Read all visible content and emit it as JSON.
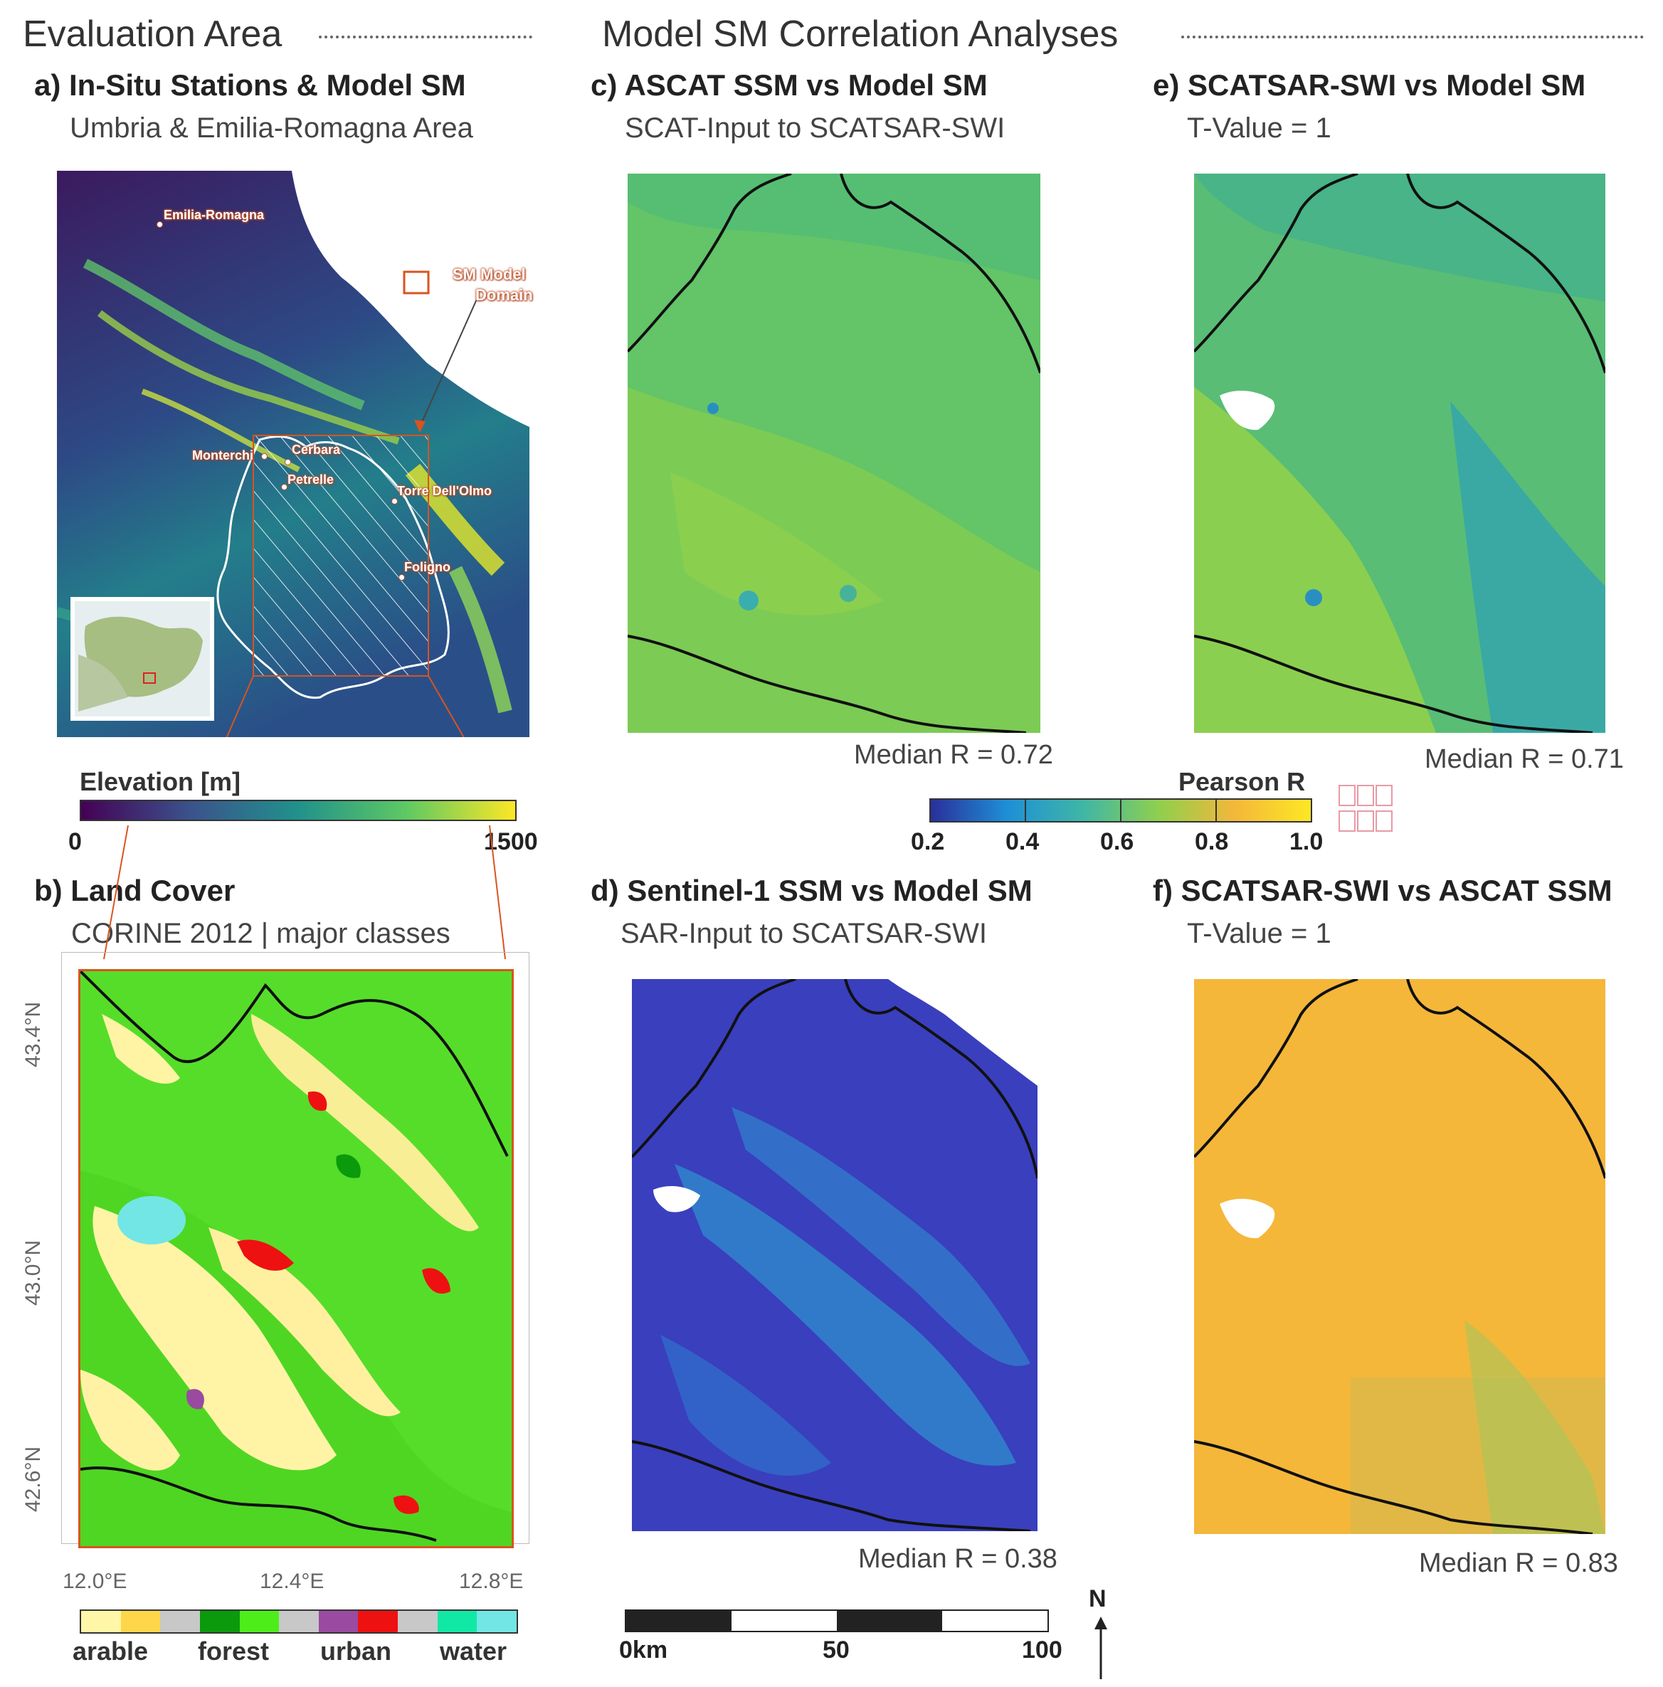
{
  "header": {
    "left_section": "Evaluation Area",
    "right_section": "Model SM Correlation Analyses"
  },
  "panel_a": {
    "title": "a) In-Situ Stations & Model SM",
    "subtitle": "Umbria & Emilia-Romagna Area",
    "stations": [
      "Emilia-Romagna",
      "Monterchi",
      "Cerbara",
      "Petrelle",
      "Torre Dell'Olmo",
      "Foligno"
    ],
    "domain_label_1": "SM Model",
    "domain_label_2": "Domain",
    "elevation_title": "Elevation [m]",
    "elevation_min": "0",
    "elevation_max": "1500"
  },
  "panel_b": {
    "title": "b) Land Cover",
    "subtitle": "CORINE 2012 | major classes",
    "lat_ticks": [
      "43.4°N",
      "43.0°N",
      "42.6°N"
    ],
    "lon_ticks": [
      "12.0°E",
      "12.4°E",
      "12.8°E"
    ],
    "classes": [
      {
        "label": "arable",
        "colors": [
          "#fff6a8",
          "#ffd64a"
        ]
      },
      {
        "label": "forest",
        "colors": [
          "#0b9a0b",
          "#4ded1a"
        ]
      },
      {
        "label": "urban",
        "colors": [
          "#9a4aa0",
          "#ee1111"
        ]
      },
      {
        "label": "water",
        "colors": [
          "#12e8a6",
          "#72e6e4"
        ]
      }
    ]
  },
  "panel_c": {
    "title": "c) ASCAT SSM vs Model SM",
    "subtitle": "SCAT-Input to SCATSAR-SWI",
    "median": "Median R = 0.72"
  },
  "panel_d": {
    "title": "d) Sentinel-1 SSM vs Model SM",
    "subtitle": "SAR-Input to SCATSAR-SWI",
    "median": "Median R = 0.38"
  },
  "panel_e": {
    "title": "e) SCATSAR-SWI vs Model SM",
    "subtitle": "T-Value = 1",
    "median": "Median R = 0.71"
  },
  "panel_f": {
    "title": "f) SCATSAR-SWI vs ASCAT SSM",
    "subtitle": "T-Value = 1",
    "median": "Median R = 0.83"
  },
  "pearson_colorbar": {
    "title": "Pearson R",
    "ticks": [
      "0.2",
      "0.4",
      "0.6",
      "0.8",
      "1.0"
    ],
    "values": [
      0.2,
      0.4,
      0.6,
      0.8,
      1.0
    ]
  },
  "scalebar": {
    "labels": [
      "0km",
      "50",
      "100"
    ]
  },
  "north_arrow": {
    "label": "N"
  },
  "colors": {
    "accent": "#d9541e",
    "viridis_low": "#440154",
    "viridis_high": "#fde725"
  }
}
